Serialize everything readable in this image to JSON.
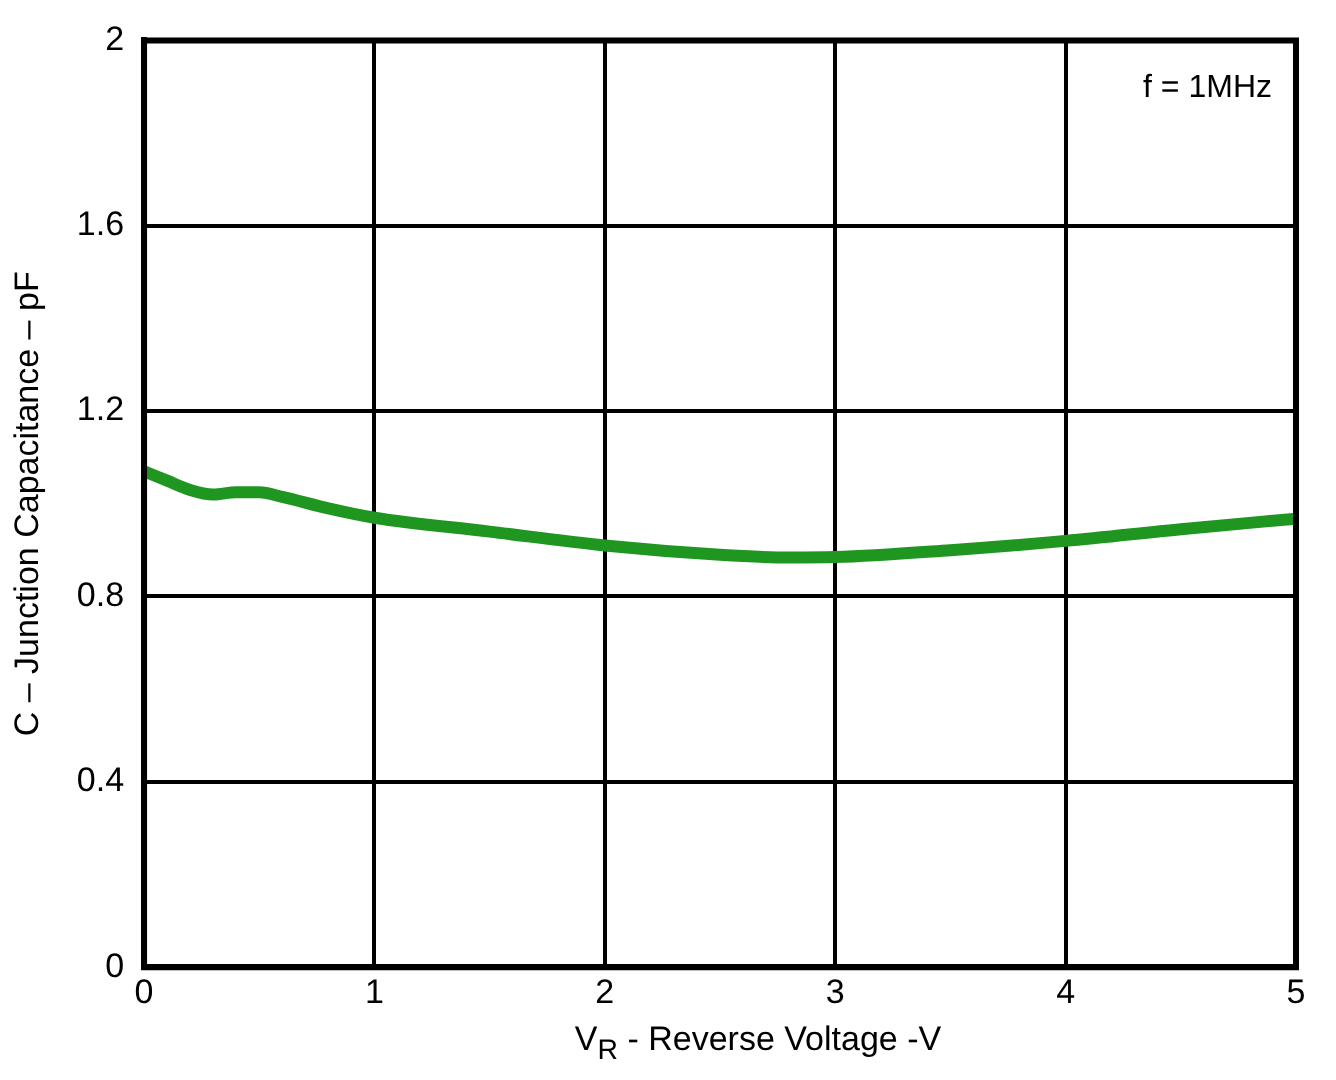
{
  "chart_data": {
    "type": "line",
    "xlabel": "V$_{R}$ - Reverse Voltage -V",
    "ylabel": "C – Junction Capacitance – pF",
    "annotations": [
      "f = 1MHz"
    ],
    "series": [
      {
        "color": "#1f961f",
        "x": [
          0,
          0.1,
          0.2,
          0.3,
          0.4,
          0.5,
          0.6,
          0.8,
          1,
          1.5,
          2,
          2.5,
          2.8,
          3,
          3.5,
          4,
          4.5,
          5
        ],
        "values": [
          1.07,
          1.05,
          1.03,
          1.02,
          1.025,
          1.025,
          1.015,
          0.99,
          0.97,
          0.94,
          0.91,
          0.89,
          0.884,
          0.885,
          0.9,
          0.92,
          0.945,
          0.968
        ]
      }
    ],
    "xlim": [
      0,
      5
    ],
    "xticks": [
      0,
      1,
      2,
      3,
      4,
      5
    ],
    "ylim": [
      0,
      2
    ],
    "yticks": [
      0,
      0.4,
      0.8,
      1.2,
      1.6,
      2
    ],
    "grid": true,
    "marker": "none",
    "line_style": "solid"
  }
}
